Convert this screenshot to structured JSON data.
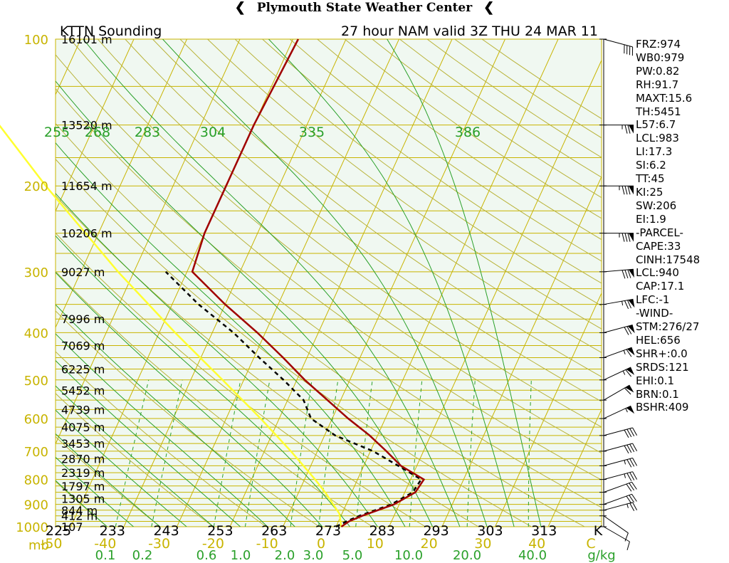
{
  "header": {
    "title": "Plymouth State Weather Center"
  },
  "chart_title": {
    "station": "KTTN Sounding",
    "run": "27 hour NAM valid 3Z THU 24 MAR 11"
  },
  "colors": {
    "background": "#ffffff",
    "plot_bg": "#f0f8f1",
    "isobar": "#c8b400",
    "isotherm": "#c8b400",
    "dry_adiabat": "#b9b33a",
    "moist_adiabat": "#2aa02a",
    "mixing_ratio": "#2aa02a",
    "temperature": "#a00000",
    "dewpoint": "#000000",
    "parcel": "#ffff30",
    "pressure_label": "#c8b400",
    "theta_label": "#2aa02a",
    "text": "#000000"
  },
  "chart_data": {
    "type": "skew-t",
    "pressure_levels_mb": [
      1000,
      900,
      800,
      700,
      600,
      500,
      400,
      300,
      200,
      100
    ],
    "pressure_labels": [
      "1000",
      "900",
      "800",
      "700",
      "600",
      "500",
      "400",
      "300",
      "200",
      "100"
    ],
    "pressure_axis_label": "mb",
    "height_labels": [
      {
        "p": 1000,
        "text": "107"
      },
      {
        "p": 950,
        "text": "412 m"
      },
      {
        "p": 925,
        "text": "844 m"
      },
      {
        "p": 875,
        "text": "1305 m"
      },
      {
        "p": 825,
        "text": "1797 m"
      },
      {
        "p": 775,
        "text": "2319 m"
      },
      {
        "p": 725,
        "text": "2870 m"
      },
      {
        "p": 675,
        "text": "3453 m"
      },
      {
        "p": 625,
        "text": "4075 m"
      },
      {
        "p": 575,
        "text": "4739 m"
      },
      {
        "p": 525,
        "text": "5452 m"
      },
      {
        "p": 475,
        "text": "6225 m"
      },
      {
        "p": 425,
        "text": "7069 m"
      },
      {
        "p": 375,
        "text": "7996 m"
      },
      {
        "p": 300,
        "text": "9027 m"
      },
      {
        "p": 250,
        "text": "10206 m"
      },
      {
        "p": 200,
        "text": "11654 m"
      },
      {
        "p": 150,
        "text": "13520 m"
      },
      {
        "p": 100,
        "text": "16101 m"
      }
    ],
    "temperature_ticks_c": [
      -50,
      -40,
      -30,
      -20,
      -10,
      0,
      10,
      20,
      30,
      40,
      50
    ],
    "temperature_tick_labels": [
      "-50",
      "-40",
      "-30",
      "-20",
      "-10",
      "0",
      "10",
      "20",
      "30",
      "40",
      "C"
    ],
    "kelvin_labels": [
      "225",
      "233",
      "243",
      "253",
      "263",
      "273",
      "283",
      "293",
      "303",
      "313",
      "K"
    ],
    "mixing_ratio_labels": [
      "0.1",
      "0.2",
      "0.6",
      "1.0",
      "2.0",
      "3.0",
      "5.0",
      "10.0",
      "20.0",
      "40.0",
      "g/kg"
    ],
    "mixing_ratio_values": [
      0.1,
      0.2,
      0.6,
      1.0,
      2.0,
      3.0,
      5.0,
      10.0,
      20.0,
      40.0
    ],
    "theta_e_labels": [
      "255",
      "268",
      "283",
      "304",
      "335",
      "386"
    ],
    "temperature_profile": [
      {
        "p": 1000,
        "t": 1.0
      },
      {
        "p": 975,
        "t": 2.0
      },
      {
        "p": 950,
        "t": 4.0
      },
      {
        "p": 900,
        "t": 9.0
      },
      {
        "p": 850,
        "t": 12.0
      },
      {
        "p": 800,
        "t": 12.5
      },
      {
        "p": 750,
        "t": 7.0
      },
      {
        "p": 700,
        "t": 3.0
      },
      {
        "p": 650,
        "t": -1.5
      },
      {
        "p": 600,
        "t": -7.0
      },
      {
        "p": 550,
        "t": -12.5
      },
      {
        "p": 500,
        "t": -18.5
      },
      {
        "p": 450,
        "t": -24.5
      },
      {
        "p": 400,
        "t": -31.5
      },
      {
        "p": 350,
        "t": -40.0
      },
      {
        "p": 300,
        "t": -49.0
      },
      {
        "p": 250,
        "t": -50.0
      },
      {
        "p": 200,
        "t": -50.0
      },
      {
        "p": 150,
        "t": -50.0
      },
      {
        "p": 100,
        "t": -49.0
      }
    ],
    "dewpoint_profile": [
      {
        "p": 1000,
        "td": 0.0
      },
      {
        "p": 975,
        "td": 1.5
      },
      {
        "p": 950,
        "td": 3.5
      },
      {
        "p": 900,
        "td": 8.5
      },
      {
        "p": 850,
        "td": 11.5
      },
      {
        "p": 800,
        "td": 12.0
      },
      {
        "p": 750,
        "td": 6.5
      },
      {
        "p": 700,
        "td": 0.5
      },
      {
        "p": 650,
        "td": -8.0
      },
      {
        "p": 600,
        "td": -14.0
      },
      {
        "p": 550,
        "td": -17.0
      },
      {
        "p": 500,
        "td": -22.5
      },
      {
        "p": 450,
        "td": -29.0
      },
      {
        "p": 400,
        "td": -36.0
      },
      {
        "p": 350,
        "td": -45.0
      },
      {
        "p": 300,
        "td": -54.0
      }
    ],
    "parcel_profile": [
      {
        "p": 1000,
        "t": 1.0
      },
      {
        "p": 940,
        "t": -0.5
      },
      {
        "p": 850,
        "t": -5.0
      },
      {
        "p": 800,
        "t": -8.0
      },
      {
        "p": 700,
        "t": -15.0
      },
      {
        "p": 600,
        "t": -23.5
      },
      {
        "p": 500,
        "t": -34.0
      },
      {
        "p": 400,
        "t": -47.0
      },
      {
        "p": 300,
        "t": -63.0
      },
      {
        "p": 200,
        "t": -84.0
      },
      {
        "p": 130,
        "t": -105.0
      }
    ],
    "wind_barbs": [
      {
        "p": 1000,
        "dir": 300,
        "spd": 10
      },
      {
        "p": 950,
        "dir": 305,
        "spd": 10
      },
      {
        "p": 925,
        "dir": 255,
        "spd": 25
      },
      {
        "p": 900,
        "dir": 250,
        "spd": 30
      },
      {
        "p": 850,
        "dir": 250,
        "spd": 30
      },
      {
        "p": 800,
        "dir": 255,
        "spd": 35
      },
      {
        "p": 750,
        "dir": 255,
        "spd": 35
      },
      {
        "p": 700,
        "dir": 255,
        "spd": 40
      },
      {
        "p": 650,
        "dir": 255,
        "spd": 40
      },
      {
        "p": 600,
        "dir": 245,
        "spd": 55
      },
      {
        "p": 550,
        "dir": 240,
        "spd": 60
      },
      {
        "p": 500,
        "dir": 245,
        "spd": 65
      },
      {
        "p": 450,
        "dir": 250,
        "spd": 65
      },
      {
        "p": 400,
        "dir": 255,
        "spd": 70
      },
      {
        "p": 350,
        "dir": 260,
        "spd": 75
      },
      {
        "p": 300,
        "dir": 265,
        "spd": 80
      },
      {
        "p": 250,
        "dir": 270,
        "spd": 85
      },
      {
        "p": 200,
        "dir": 270,
        "spd": 85
      },
      {
        "p": 150,
        "dir": 270,
        "spd": 75
      },
      {
        "p": 100,
        "dir": 285,
        "spd": 40
      }
    ]
  },
  "indices": [
    "FRZ:974",
    "WB0:979",
    "PW:0.82",
    "RH:91.7",
    "MAXT:15.6",
    "TH:5451",
    "L57:6.7",
    "LCL:983",
    "LI:17.3",
    "SI:6.2",
    "TT:45",
    "KI:25",
    "SW:206",
    "EI:1.9",
    "-PARCEL-",
    "CAPE:33",
    "CINH:17548",
    "LCL:940",
    "CAP:17.1",
    "LFC:-1",
    "-WIND-",
    "STM:276/27",
    "HEL:656",
    "SHR+:0.0",
    "SRDS:121",
    "EHI:0.1",
    "BRN:0.1",
    "BSHR:409"
  ]
}
